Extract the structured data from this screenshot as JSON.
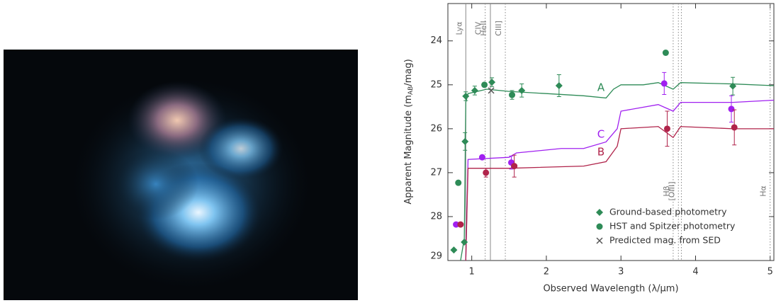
{
  "chart_data": {
    "type": "line",
    "xlabel": "Observed Wavelength (λ/μm)",
    "ylabel": [
      "Apparent Magnitude (m",
      "AB",
      "/mag)"
    ],
    "xlim": [
      0.68,
      5.05
    ],
    "ylim": [
      29,
      23.15
    ],
    "xticks": [
      1,
      2,
      3,
      4,
      5
    ],
    "yticks": [
      24,
      25,
      26,
      27,
      28,
      29
    ],
    "legend": "lower right",
    "series": [
      {
        "name": "A",
        "color": "#2e8b57",
        "x": [
          0.85,
          0.9,
          0.92,
          0.95,
          1.2,
          1.5,
          2.0,
          2.5,
          2.8,
          2.9,
          3.0,
          3.3,
          3.5,
          3.7,
          3.8,
          4.5,
          5.05
        ],
        "values": [
          29,
          28.5,
          25.4,
          25.2,
          25.1,
          25.15,
          25.2,
          25.25,
          25.3,
          25.1,
          25.0,
          25.0,
          24.95,
          25.1,
          24.95,
          24.98,
          25.02
        ]
      },
      {
        "name": "C",
        "color": "#a020f0",
        "x": [
          0.92,
          0.95,
          1.5,
          1.6,
          2.2,
          2.5,
          2.8,
          2.95,
          3.0,
          3.5,
          3.7,
          3.8,
          4.5,
          5.05
        ],
        "values": [
          29,
          26.7,
          26.65,
          26.55,
          26.45,
          26.45,
          26.3,
          26.0,
          25.6,
          25.45,
          25.6,
          25.4,
          25.4,
          25.35
        ]
      },
      {
        "name": "B",
        "color": "#b0234a",
        "x": [
          0.92,
          0.95,
          1.5,
          2.5,
          2.8,
          2.95,
          3.0,
          3.5,
          3.7,
          3.8,
          4.5,
          5.05
        ],
        "values": [
          29,
          26.9,
          26.9,
          26.85,
          26.75,
          26.4,
          26.0,
          25.95,
          26.2,
          25.95,
          26.0,
          26.0
        ]
      }
    ],
    "points": [
      {
        "name": "Ground-based photometry",
        "marker": "diamond",
        "color": "#2e8b57",
        "x": [
          0.91,
          0.92,
          1.04,
          1.27,
          1.67,
          2.17,
          4.5,
          0.76,
          0.9
        ],
        "values": [
          26.29,
          25.26,
          25.13,
          24.94,
          25.13,
          25.02,
          25.03,
          28.76,
          28.58
        ],
        "errors": [
          0.2,
          0.1,
          0.1,
          0.1,
          0.15,
          0.25,
          0.2,
          null,
          null
        ]
      },
      {
        "name": "HST and Spitzer photometry",
        "marker": "circle",
        "color": "#2e8b57",
        "x": [
          1.17,
          1.54,
          3.6,
          0.82
        ],
        "values": [
          25.0,
          25.23,
          24.27,
          27.23
        ],
        "errors": [
          null,
          0.1,
          0.05,
          null
        ]
      },
      {
        "name": "Predicted mag. from SED",
        "marker": "cross",
        "color": "#555555",
        "x": [
          1.26
        ],
        "values": [
          25.13
        ],
        "errors": [
          null
        ]
      },
      {
        "marker": "circle",
        "color": "#a020f0",
        "x": [
          1.14,
          1.53,
          3.58,
          4.48,
          0.79
        ],
        "values": [
          26.65,
          26.77,
          24.97,
          25.55,
          28.18
        ],
        "errors": [
          null,
          0.15,
          0.25,
          0.3,
          null
        ]
      },
      {
        "marker": "circle",
        "color": "#b0234a",
        "x": [
          1.19,
          1.57,
          3.62,
          4.52,
          0.85
        ],
        "values": [
          27.0,
          26.85,
          26.0,
          25.97,
          28.18
        ],
        "errors": [
          0.1,
          0.25,
          0.4,
          0.4,
          null
        ]
      }
    ],
    "spectral_lines": [
      {
        "label": "Lyα",
        "x": [
          0.92
        ],
        "style": "solid"
      },
      {
        "label": "CIV",
        "x": [
          1.18
        ],
        "style": "dotted"
      },
      {
        "label": "HeII",
        "x": [
          1.25
        ],
        "style": "solid"
      },
      {
        "label": "CIII]",
        "x": [
          1.45
        ],
        "style": "dotted"
      },
      {
        "label": "Hβ",
        "x": [
          3.7
        ],
        "style": "dotted"
      },
      {
        "label": "[OIII]",
        "x": [
          3.77,
          3.81
        ],
        "style": "dotted"
      },
      {
        "label": "Hα",
        "x": [
          5.0
        ],
        "style": "dotted"
      }
    ]
  }
}
